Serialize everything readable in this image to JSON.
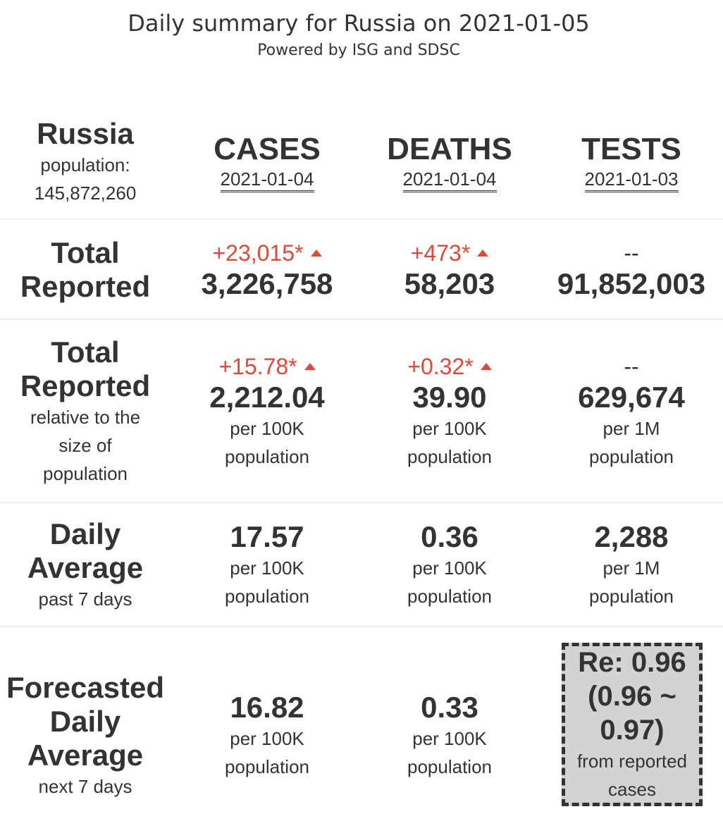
{
  "header": {
    "title": "Daily summary for Russia on 2021-01-05",
    "subtitle": "Powered by ISG and SDSC"
  },
  "country": {
    "name": "Russia",
    "population_label": "population:",
    "population": "145,872,260"
  },
  "columns": {
    "cases": {
      "label": "CASES",
      "date": "2021-01-04"
    },
    "deaths": {
      "label": "DEATHS",
      "date": "2021-01-04"
    },
    "tests": {
      "label": "TESTS",
      "date": "2021-01-03"
    }
  },
  "total_reported": {
    "label_line1": "Total",
    "label_line2": "Reported",
    "cases": {
      "delta": "+23,015*",
      "value": "3,226,758"
    },
    "deaths": {
      "delta": "+473*",
      "value": "58,203"
    },
    "tests": {
      "delta": "--",
      "value": "91,852,003"
    }
  },
  "relative": {
    "label_line1": "Total",
    "label_line2": "Reported",
    "sub_line1": "relative to the",
    "sub_line2": "size of",
    "sub_line3": "population",
    "cases": {
      "delta": "+15.78*",
      "value": "2,212.04",
      "unit1": "per 100K",
      "unit2": "population"
    },
    "deaths": {
      "delta": "+0.32*",
      "value": "39.90",
      "unit1": "per 100K",
      "unit2": "population"
    },
    "tests": {
      "delta": "--",
      "value": "629,674",
      "unit1": "per 1M",
      "unit2": "population"
    }
  },
  "daily_average": {
    "label_line1": "Daily",
    "label_line2": "Average",
    "sub": "past 7 days",
    "cases": {
      "value": "17.57",
      "unit1": "per 100K",
      "unit2": "population"
    },
    "deaths": {
      "value": "0.36",
      "unit1": "per 100K",
      "unit2": "population"
    },
    "tests": {
      "value": "2,288",
      "unit1": "per 1M",
      "unit2": "population"
    }
  },
  "forecast": {
    "label_line1": "Forecasted",
    "label_line2": "Daily",
    "label_line3": "Average",
    "sub": "next 7 days",
    "cases": {
      "value": "16.82",
      "unit1": "per 100K",
      "unit2": "population"
    },
    "deaths": {
      "value": "0.33",
      "unit1": "per 100K",
      "unit2": "population"
    },
    "re": {
      "line1": "Re: 0.96",
      "line2": "(0.96 ~",
      "line3": "0.97)",
      "sub1": "from reported",
      "sub2": "cases"
    }
  },
  "colors": {
    "increase": "#e0483a",
    "text": "#333333",
    "re_box_bg": "#d3d3d3",
    "divider": "#eeeeee"
  },
  "icons": {
    "increase": "triangle-up-icon"
  }
}
